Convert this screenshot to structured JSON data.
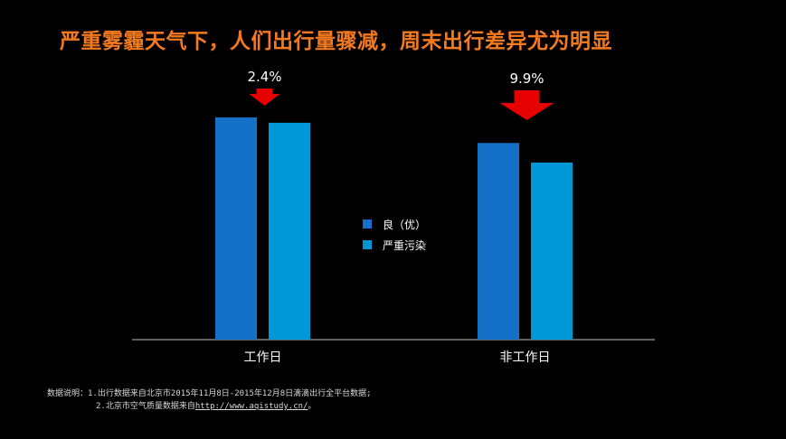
{
  "title": "严重雾霾天气下，人们出行量骤减，周末出行差异尤为明显",
  "chart_data": {
    "type": "bar",
    "categories": [
      "工作日",
      "非工作日"
    ],
    "series": [
      {
        "name": "良（优）",
        "values": [
          100,
          88.5
        ]
      },
      {
        "name": "严重污染",
        "values": [
          97.6,
          79.7
        ]
      }
    ],
    "ylim": [
      0,
      100
    ],
    "annotations": [
      "2.4%",
      "9.9%"
    ],
    "colors": {
      "series": [
        "#1570c7",
        "#0097d8"
      ],
      "arrow": "#e60000",
      "annotation_text": "#ffffff",
      "axis": "#bfbfbf"
    },
    "grid": false,
    "legend": "center"
  },
  "notes": {
    "label": "数据说明：",
    "line1": "1.出行数据来自北京市2015年11月8日-2015年12月8日滴滴出行全平台数据;",
    "line2_prefix": "2.北京市空气质量数据来自",
    "line2_link": "http://www.aqistudy.cn/",
    "line2_suffix": "。"
  }
}
